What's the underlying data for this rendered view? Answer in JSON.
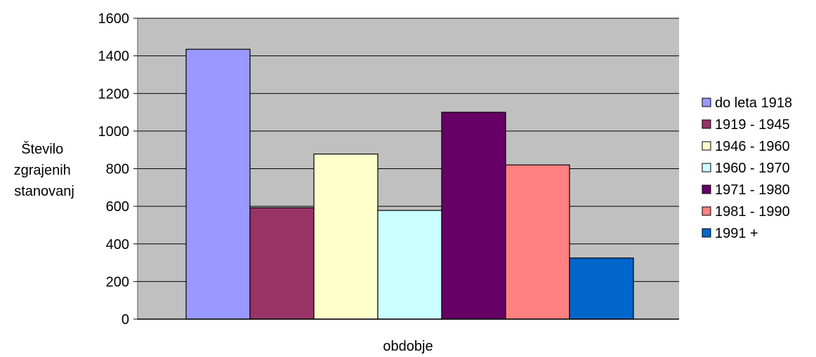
{
  "chart_data": {
    "type": "bar",
    "xlabel": "obdobje",
    "ylabel_lines": [
      "Število",
      "zgrajenih",
      "stanovanj"
    ],
    "ylim": [
      0,
      1600
    ],
    "yticks": [
      0,
      200,
      400,
      600,
      800,
      1000,
      1200,
      1400,
      1600
    ],
    "grid": true,
    "legend_position": "right",
    "plot_background": "#c0c0c0",
    "series": [
      {
        "name": "do leta 1918",
        "value": 1435,
        "color": "#9999ff"
      },
      {
        "name": "1919 - 1945",
        "value": 592,
        "color": "#993366"
      },
      {
        "name": "1946 - 1960",
        "value": 878,
        "color": "#ffffcc"
      },
      {
        "name": "1960 - 1970",
        "value": 578,
        "color": "#ccffff"
      },
      {
        "name": "1971 - 1980",
        "value": 1100,
        "color": "#660066"
      },
      {
        "name": "1981 - 1990",
        "value": 820,
        "color": "#ff8080"
      },
      {
        "name": "1991 +",
        "value": 325,
        "color": "#0066cc"
      }
    ]
  }
}
